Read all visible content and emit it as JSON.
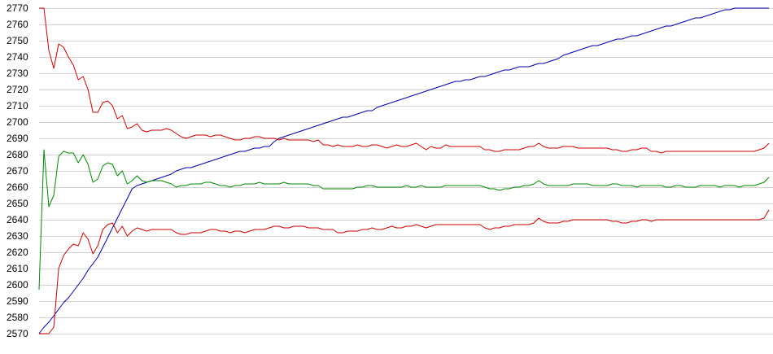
{
  "chart_data": {
    "type": "line",
    "title": "",
    "xlabel": "",
    "ylabel": "",
    "ylim": [
      2570,
      2770
    ],
    "yticks": [
      2570,
      2580,
      2590,
      2600,
      2610,
      2620,
      2630,
      2640,
      2650,
      2660,
      2670,
      2680,
      2690,
      2700,
      2710,
      2720,
      2730,
      2740,
      2750,
      2760,
      2770
    ],
    "grid": true,
    "legend": "none",
    "x": [
      1,
      2,
      3,
      4,
      5,
      6,
      7,
      8,
      9,
      10,
      11,
      12,
      13,
      14,
      15,
      16,
      17,
      18,
      19,
      20,
      21,
      22,
      23,
      24,
      25,
      26,
      27,
      28,
      29,
      30,
      31,
      32,
      33,
      34,
      35,
      36,
      37,
      38,
      39,
      40,
      41,
      42,
      43,
      44,
      45,
      46,
      47,
      48,
      49,
      50,
      51,
      52,
      53,
      54,
      55,
      56,
      57,
      58,
      59,
      60,
      61,
      62,
      63,
      64,
      65,
      66,
      67,
      68,
      69,
      70,
      71,
      72,
      73,
      74,
      75,
      76,
      77,
      78,
      79,
      80,
      81,
      82,
      83,
      84,
      85,
      86,
      87,
      88,
      89,
      90,
      91,
      92,
      93,
      94,
      95,
      96,
      97,
      98,
      99,
      100,
      101,
      102,
      103,
      104,
      105,
      106,
      107,
      108,
      109,
      110,
      111,
      112,
      113,
      114,
      115,
      116,
      117,
      118,
      119,
      120,
      121,
      122,
      123,
      124,
      125,
      126,
      127,
      128,
      129,
      130,
      131,
      132,
      133,
      134,
      135,
      136,
      137,
      138,
      139,
      140,
      141,
      142,
      143,
      144,
      145,
      146,
      147,
      148,
      149,
      150
    ],
    "series": [
      {
        "color": "#0000aa",
        "values": [
          2570,
          2574,
          2577,
          2581,
          2585,
          2589,
          2592,
          2596,
          2600,
          2604,
          2609,
          2613,
          2617,
          2623,
          2629,
          2635,
          2641,
          2647,
          2653,
          2659,
          2661,
          2662,
          2663,
          2664,
          2665,
          2666,
          2667,
          2668,
          2670,
          2671,
          2672,
          2672,
          2673,
          2674,
          2675,
          2676,
          2677,
          2678,
          2679,
          2680,
          2681,
          2682,
          2682,
          2683,
          2684,
          2684,
          2685,
          2685,
          2688,
          2690,
          2691,
          2692,
          2693,
          2694,
          2695,
          2696,
          2697,
          2698,
          2699,
          2700,
          2701,
          2702,
          2703,
          2703,
          2704,
          2705,
          2706,
          2707,
          2707,
          2709,
          2710,
          2711,
          2712,
          2713,
          2714,
          2715,
          2716,
          2717,
          2718,
          2719,
          2720,
          2721,
          2722,
          2723,
          2724,
          2725,
          2725,
          2726,
          2726,
          2727,
          2728,
          2728,
          2729,
          2730,
          2731,
          2732,
          2732,
          2733,
          2734,
          2734,
          2734,
          2735,
          2736,
          2736,
          2737,
          2738,
          2739,
          2741,
          2742,
          2743,
          2744,
          2745,
          2746,
          2747,
          2747,
          2748,
          2749,
          2750,
          2751,
          2751,
          2752,
          2753,
          2753,
          2754,
          2755,
          2756,
          2757,
          2758,
          2759,
          2759,
          2760,
          2761,
          2762,
          2763,
          2764,
          2764,
          2765,
          2766,
          2767,
          2768,
          2769,
          2769,
          2770,
          2770,
          2770,
          2770,
          2770,
          2770,
          2770,
          2770
        ]
      },
      {
        "color": "#cc0000",
        "values": [
          2770,
          2770,
          2744,
          2733,
          2748,
          2746,
          2740,
          2735,
          2726,
          2728,
          2720,
          2706,
          2706,
          2712,
          2713,
          2710,
          2702,
          2704,
          2696,
          2697,
          2699,
          2695,
          2694,
          2695,
          2695,
          2695,
          2696,
          2695,
          2693,
          2691,
          2690,
          2691,
          2692,
          2692,
          2692,
          2691,
          2692,
          2692,
          2691,
          2690,
          2689,
          2689,
          2690,
          2690,
          2691,
          2691,
          2690,
          2690,
          2690,
          2689,
          2690,
          2689,
          2689,
          2689,
          2689,
          2689,
          2688,
          2689,
          2686,
          2686,
          2685,
          2686,
          2685,
          2685,
          2685,
          2686,
          2685,
          2685,
          2686,
          2686,
          2685,
          2684,
          2685,
          2686,
          2685,
          2685,
          2686,
          2687,
          2685,
          2683,
          2685,
          2684,
          2684,
          2686,
          2685,
          2685,
          2685,
          2685,
          2685,
          2685,
          2685,
          2683,
          2683,
          2682,
          2682,
          2683,
          2683,
          2683,
          2683,
          2684,
          2685,
          2685,
          2687,
          2685,
          2684,
          2684,
          2684,
          2685,
          2685,
          2685,
          2684,
          2684,
          2684,
          2684,
          2684,
          2684,
          2684,
          2683,
          2683,
          2682,
          2682,
          2683,
          2683,
          2684,
          2684,
          2682,
          2682,
          2681,
          2682,
          2682,
          2682,
          2682,
          2682,
          2682,
          2682,
          2682,
          2682,
          2682,
          2682,
          2682,
          2682,
          2682,
          2682,
          2682,
          2682,
          2682,
          2682,
          2683,
          2684,
          2687
        ]
      },
      {
        "color": "#008800",
        "values": [
          2597,
          2683,
          2648,
          2655,
          2679,
          2682,
          2681,
          2681,
          2675,
          2680,
          2674,
          2663,
          2665,
          2673,
          2675,
          2674,
          2667,
          2670,
          2662,
          2664,
          2667,
          2664,
          2663,
          2664,
          2664,
          2664,
          2663,
          2662,
          2660,
          2661,
          2661,
          2662,
          2662,
          2662,
          2663,
          2663,
          2662,
          2661,
          2661,
          2660,
          2661,
          2661,
          2662,
          2662,
          2662,
          2663,
          2662,
          2662,
          2662,
          2662,
          2663,
          2662,
          2662,
          2662,
          2662,
          2662,
          2661,
          2661,
          2659,
          2659,
          2659,
          2659,
          2659,
          2659,
          2659,
          2660,
          2660,
          2661,
          2661,
          2660,
          2660,
          2660,
          2660,
          2660,
          2660,
          2661,
          2660,
          2660,
          2661,
          2660,
          2660,
          2660,
          2660,
          2661,
          2661,
          2661,
          2661,
          2661,
          2661,
          2661,
          2661,
          2660,
          2659,
          2659,
          2658,
          2659,
          2659,
          2660,
          2660,
          2661,
          2661,
          2662,
          2664,
          2662,
          2661,
          2661,
          2661,
          2661,
          2661,
          2662,
          2662,
          2662,
          2662,
          2661,
          2661,
          2661,
          2661,
          2662,
          2662,
          2661,
          2661,
          2661,
          2660,
          2661,
          2661,
          2661,
          2661,
          2661,
          2660,
          2660,
          2661,
          2661,
          2660,
          2660,
          2660,
          2661,
          2661,
          2661,
          2661,
          2660,
          2661,
          2661,
          2661,
          2660,
          2661,
          2661,
          2661,
          2662,
          2663,
          2666
        ]
      },
      {
        "color": "#cc0000",
        "values": [
          2570,
          2570,
          2570,
          2574,
          2610,
          2618,
          2622,
          2625,
          2624,
          2632,
          2628,
          2619,
          2624,
          2634,
          2637,
          2638,
          2632,
          2636,
          2630,
          2633,
          2635,
          2634,
          2633,
          2634,
          2634,
          2634,
          2634,
          2634,
          2632,
          2631,
          2631,
          2632,
          2632,
          2632,
          2633,
          2634,
          2634,
          2633,
          2633,
          2632,
          2633,
          2633,
          2632,
          2633,
          2634,
          2634,
          2634,
          2635,
          2636,
          2636,
          2635,
          2635,
          2636,
          2636,
          2636,
          2635,
          2635,
          2635,
          2634,
          2634,
          2634,
          2632,
          2632,
          2633,
          2633,
          2633,
          2634,
          2634,
          2635,
          2634,
          2634,
          2635,
          2636,
          2635,
          2635,
          2636,
          2636,
          2637,
          2636,
          2635,
          2636,
          2637,
          2637,
          2637,
          2637,
          2637,
          2637,
          2637,
          2637,
          2637,
          2637,
          2635,
          2634,
          2635,
          2635,
          2636,
          2636,
          2637,
          2637,
          2637,
          2637,
          2638,
          2641,
          2639,
          2638,
          2638,
          2638,
          2639,
          2639,
          2640,
          2640,
          2640,
          2640,
          2640,
          2640,
          2640,
          2640,
          2639,
          2639,
          2638,
          2638,
          2639,
          2639,
          2640,
          2640,
          2639,
          2640,
          2640,
          2640,
          2640,
          2640,
          2640,
          2640,
          2640,
          2640,
          2640,
          2640,
          2640,
          2640,
          2640,
          2640,
          2640,
          2640,
          2640,
          2640,
          2640,
          2640,
          2640,
          2641,
          2646
        ]
      }
    ]
  }
}
